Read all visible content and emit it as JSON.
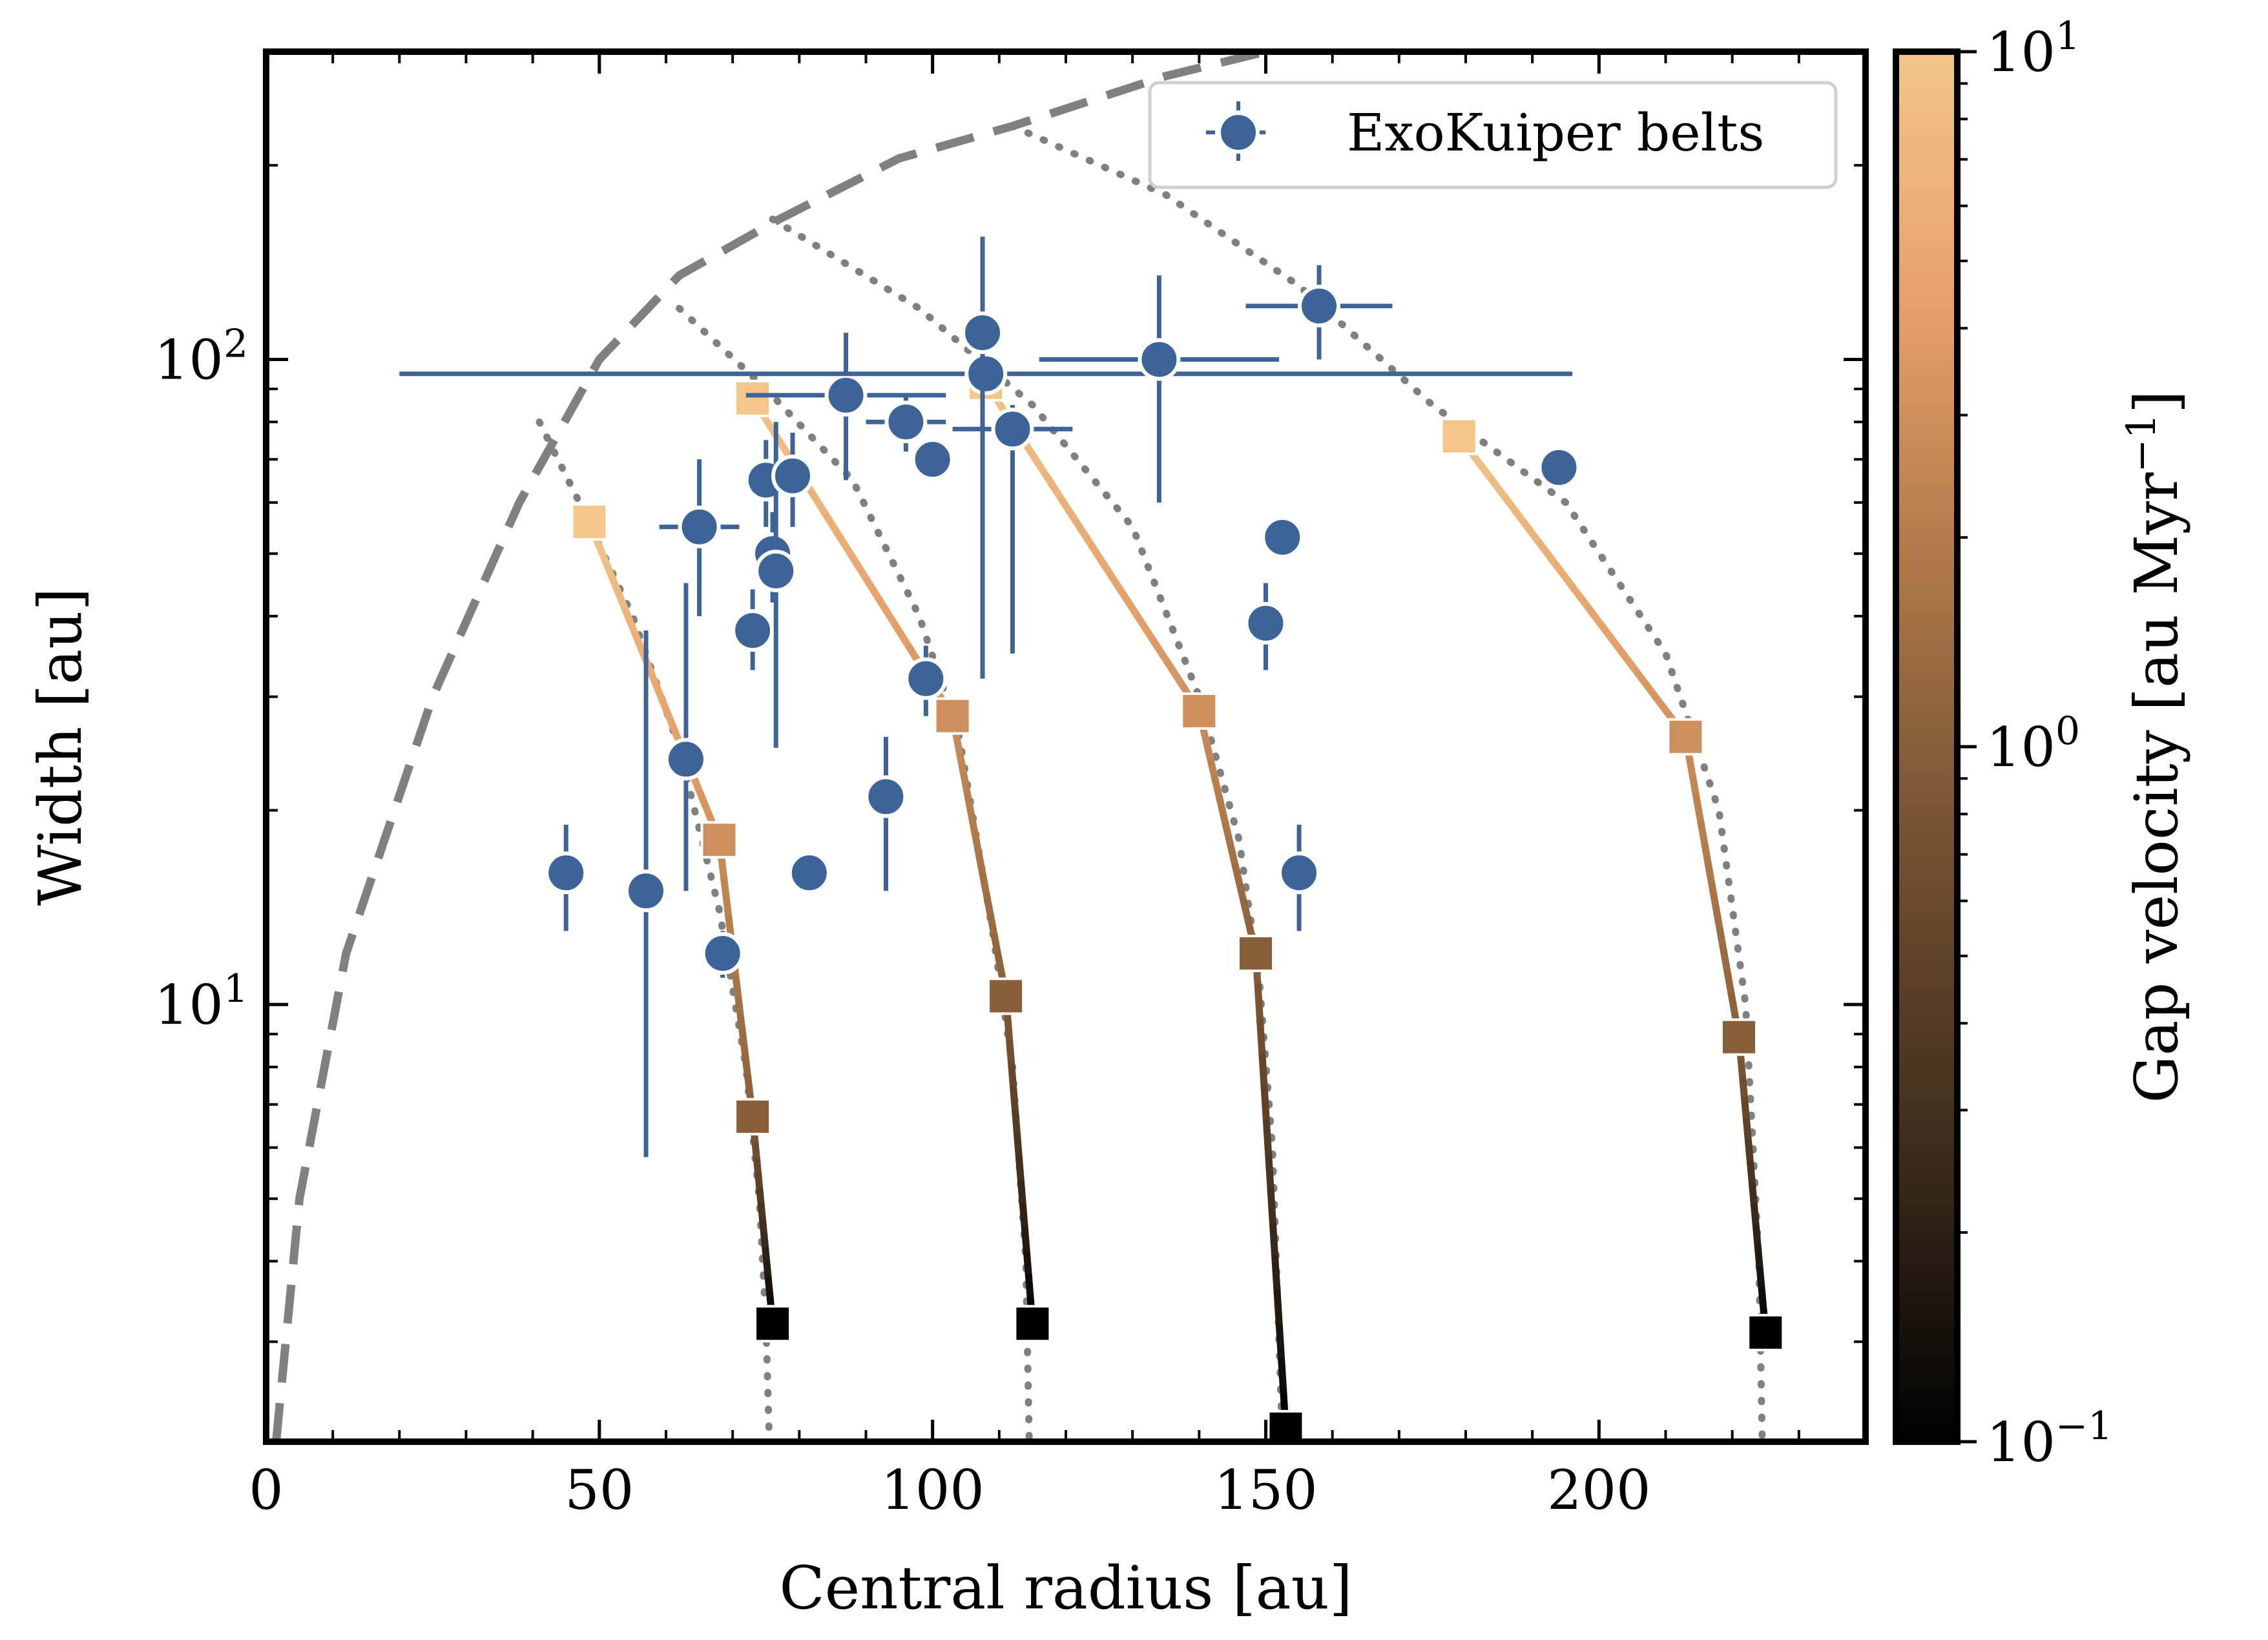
{
  "chart_data": {
    "type": "scatter",
    "xlabel": "Central radius [au]",
    "ylabel": "Width [au]",
    "xlim": [
      0,
      240
    ],
    "ylim": [
      2.1,
      300
    ],
    "yscale": "log",
    "x_ticks": [
      0,
      50,
      100,
      150,
      200
    ],
    "y_ticks": [
      {
        "value": 10,
        "base": "10",
        "exp": "1"
      },
      {
        "value": 100,
        "base": "10",
        "exp": "2"
      }
    ],
    "grid": false,
    "legend": {
      "position": "top-right",
      "entries": [
        "ExoKuiper belts"
      ]
    },
    "colorbar": {
      "label": "Gap velocity [au Myr",
      "label_exp": "−1",
      "label_close": "]",
      "scale": "log",
      "range": [
        0.1,
        10
      ],
      "ticks": [
        {
          "value": 10,
          "base": "10",
          "exp": "1"
        },
        {
          "value": 1,
          "base": "10",
          "exp": "0"
        },
        {
          "value": 0.1,
          "base": "10",
          "exp": "−1"
        }
      ],
      "colors": [
        "#000000",
        "#3a2a1a",
        "#7a5432",
        "#b47c4c",
        "#e8a06a",
        "#f2c688"
      ]
    },
    "series": [
      {
        "name": "ExoKuiper belts",
        "color": "#3d6499",
        "points": [
          {
            "x": 45,
            "y": 16,
            "xerr": 0,
            "ylo": 13,
            "yhi": 19
          },
          {
            "x": 57,
            "y": 15,
            "xerr": 0,
            "ylo": 5.8,
            "yhi": 38
          },
          {
            "x": 63,
            "y": 24,
            "xerr": 0,
            "ylo": 15,
            "yhi": 45
          },
          {
            "x": 65,
            "y": 55,
            "xerr": 6,
            "ylo": 40,
            "yhi": 70
          },
          {
            "x": 68.5,
            "y": 12,
            "xerr": 0,
            "ylo": 11,
            "yhi": 13
          },
          {
            "x": 73,
            "y": 38,
            "xerr": 0,
            "ylo": 33,
            "yhi": 44
          },
          {
            "x": 75,
            "y": 65,
            "xerr": 3,
            "ylo": 55,
            "yhi": 75
          },
          {
            "x": 76,
            "y": 50,
            "xerr": 2,
            "ylo": 42,
            "yhi": 58
          },
          {
            "x": 76.5,
            "y": 47,
            "xerr": 2,
            "ylo": 25,
            "yhi": 80
          },
          {
            "x": 79,
            "y": 66,
            "xerr": 1,
            "ylo": 55,
            "yhi": 77
          },
          {
            "x": 81.5,
            "y": 16,
            "xerr": 0,
            "ylo": 16,
            "yhi": 16
          },
          {
            "x": 87,
            "y": 88,
            "xerr": 15,
            "ylo": 65,
            "yhi": 110
          },
          {
            "x": 93,
            "y": 21,
            "xerr": 0,
            "ylo": 15,
            "yhi": 26
          },
          {
            "x": 96,
            "y": 80,
            "xerr": 6,
            "ylo": 72,
            "yhi": 88
          },
          {
            "x": 99,
            "y": 32,
            "xerr": 2,
            "ylo": 28,
            "yhi": 36
          },
          {
            "x": 100,
            "y": 70,
            "xerr": 0,
            "ylo": 70,
            "yhi": 70
          },
          {
            "x": 108,
            "y": 95,
            "xerr": 88,
            "ylo": 95,
            "yhi": 95
          },
          {
            "x": 107.5,
            "y": 110,
            "xerr": 0,
            "ylo": 32,
            "yhi": 155
          },
          {
            "x": 112,
            "y": 78,
            "xerr": 9,
            "ylo": 35,
            "yhi": 85
          },
          {
            "x": 134,
            "y": 100,
            "xerr": 18,
            "ylo": 60,
            "yhi": 135
          },
          {
            "x": 150,
            "y": 39,
            "xerr": 0,
            "ylo": 33,
            "yhi": 45
          },
          {
            "x": 152.5,
            "y": 53,
            "xerr": 0,
            "ylo": 53,
            "yhi": 53
          },
          {
            "x": 155,
            "y": 16,
            "xerr": 0,
            "ylo": 13,
            "yhi": 19
          },
          {
            "x": 158,
            "y": 121,
            "xerr": 11,
            "ylo": 100,
            "yhi": 140
          },
          {
            "x": 194,
            "y": 68,
            "xerr": 0,
            "ylo": 68,
            "yhi": 68
          }
        ]
      }
    ],
    "gap_tracks": [
      {
        "points": [
          {
            "x": 48.5,
            "y": 56,
            "v": 10
          },
          {
            "x": 68,
            "y": 18,
            "v": 3
          },
          {
            "x": 73,
            "y": 6.7,
            "v": 1
          },
          {
            "x": 76,
            "y": 3.2,
            "v": 0.1
          }
        ]
      },
      {
        "points": [
          {
            "x": 73,
            "y": 87,
            "v": 10
          },
          {
            "x": 103,
            "y": 28,
            "v": 3
          },
          {
            "x": 111,
            "y": 10.3,
            "v": 1
          },
          {
            "x": 115,
            "y": 3.2,
            "v": 0.1
          }
        ]
      },
      {
        "points": [
          {
            "x": 108,
            "y": 92,
            "v": 10
          },
          {
            "x": 140,
            "y": 28.5,
            "v": 3
          },
          {
            "x": 148.5,
            "y": 12,
            "v": 1
          },
          {
            "x": 153,
            "y": 2.2,
            "v": 0.1
          }
        ]
      },
      {
        "points": [
          {
            "x": 179,
            "y": 76,
            "v": 10
          },
          {
            "x": 213,
            "y": 26,
            "v": 3
          },
          {
            "x": 221,
            "y": 8.9,
            "v": 1
          },
          {
            "x": 225,
            "y": 3.1,
            "v": 0.1
          }
        ]
      }
    ],
    "envelope_curve": {
      "style": "dashed",
      "color": "#808080",
      "points": [
        [
          1.5,
          2.1
        ],
        [
          5,
          5
        ],
        [
          12,
          12
        ],
        [
          25,
          30
        ],
        [
          38,
          60
        ],
        [
          50,
          100
        ],
        [
          62,
          135
        ],
        [
          77,
          165
        ],
        [
          95,
          205
        ],
        [
          112,
          230
        ],
        [
          135,
          275
        ],
        [
          150,
          300
        ]
      ]
    },
    "dotted_curves": [
      {
        "color": "#808080",
        "points": [
          [
            41,
            80
          ],
          [
            47,
            60
          ],
          [
            55,
            40
          ],
          [
            62,
            25
          ],
          [
            68,
            14
          ],
          [
            72,
            8
          ],
          [
            74,
            5
          ],
          [
            75,
            3.2
          ],
          [
            75.5,
            2.1
          ]
        ]
      },
      {
        "color": "#808080",
        "points": [
          [
            62,
            120
          ],
          [
            75,
            90
          ],
          [
            88,
            65
          ],
          [
            98,
            40
          ],
          [
            104,
            26
          ],
          [
            109,
            13
          ],
          [
            112,
            8
          ],
          [
            114,
            4
          ],
          [
            114.5,
            2.1
          ]
        ]
      },
      {
        "color": "#808080",
        "points": [
          [
            76,
            165
          ],
          [
            98,
            120
          ],
          [
            115,
            85
          ],
          [
            130,
            55
          ],
          [
            140,
            30
          ],
          [
            146,
            18
          ],
          [
            149,
            11
          ],
          [
            151,
            6
          ],
          [
            152.5,
            2.1
          ]
        ]
      },
      {
        "color": "#808080",
        "points": [
          [
            112,
            230
          ],
          [
            135,
            180
          ],
          [
            155,
            130
          ],
          [
            175,
            85
          ],
          [
            195,
            60
          ],
          [
            210,
            35
          ],
          [
            218,
            20
          ],
          [
            222,
            10
          ],
          [
            224,
            4
          ],
          [
            224.5,
            2.1
          ]
        ]
      }
    ]
  }
}
